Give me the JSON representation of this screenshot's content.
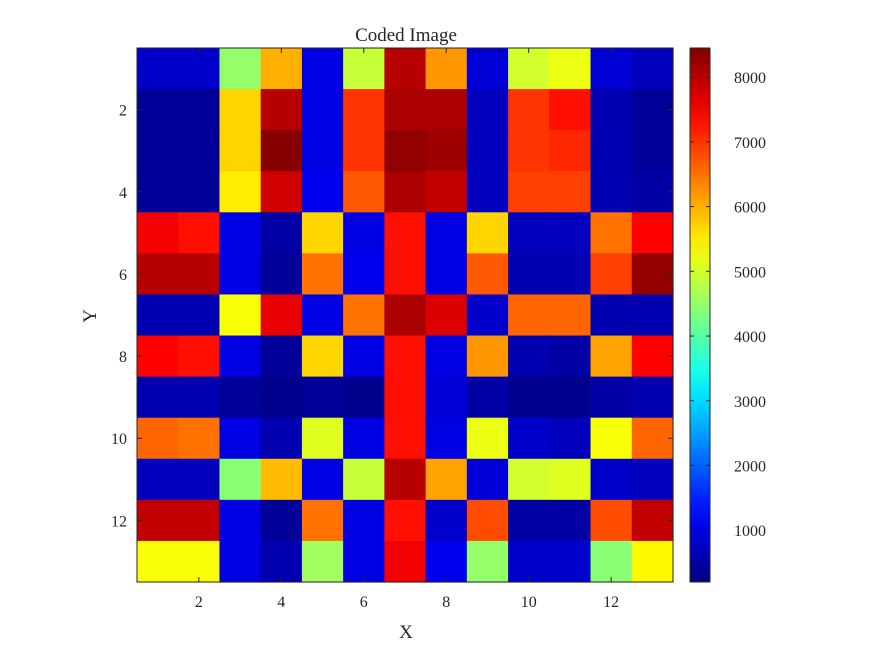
{
  "chart_data": {
    "type": "heatmap",
    "title": "Coded Image",
    "xlabel": "X",
    "ylabel": "Y",
    "colormap": "jet",
    "x_ticks": [
      2,
      4,
      6,
      8,
      10,
      12
    ],
    "y_ticks": [
      2,
      4,
      6,
      8,
      10,
      12
    ],
    "xlim": [
      0.5,
      13.5
    ],
    "ylim": [
      0.5,
      13.5
    ],
    "y_direction": "reverse",
    "clim": [
      200,
      8450
    ],
    "colorbar_ticks": [
      1000,
      2000,
      3000,
      4000,
      5000,
      6000,
      7000,
      8000
    ],
    "colorbar_position": "right",
    "grid": false,
    "z": [
      [
        800,
        800,
        4500,
        6000,
        1000,
        4900,
        8000,
        6200,
        900,
        5000,
        5200,
        900,
        700
      ],
      [
        400,
        400,
        5700,
        8000,
        1000,
        7000,
        8100,
        8100,
        700,
        7000,
        7300,
        600,
        400
      ],
      [
        400,
        400,
        5700,
        8400,
        1000,
        7000,
        8300,
        8200,
        700,
        7000,
        7100,
        600,
        400
      ],
      [
        400,
        400,
        5500,
        7800,
        1100,
        6700,
        8100,
        7900,
        700,
        6900,
        6900,
        600,
        500
      ],
      [
        7500,
        7300,
        1000,
        500,
        5700,
        1000,
        7300,
        1000,
        5700,
        700,
        700,
        6500,
        7400
      ],
      [
        8000,
        8000,
        1000,
        400,
        6500,
        1100,
        7300,
        1000,
        6700,
        600,
        600,
        6900,
        8300
      ],
      [
        600,
        600,
        5300,
        7600,
        1000,
        6500,
        8100,
        7700,
        800,
        6600,
        6600,
        600,
        600
      ],
      [
        7400,
        7300,
        1000,
        400,
        5700,
        1000,
        7300,
        1000,
        6200,
        600,
        500,
        6100,
        7400
      ],
      [
        600,
        600,
        400,
        300,
        400,
        300,
        7300,
        900,
        500,
        300,
        300,
        500,
        600
      ],
      [
        6600,
        6500,
        1000,
        600,
        5100,
        1000,
        7300,
        1000,
        5200,
        800,
        700,
        5300,
        6600
      ],
      [
        700,
        700,
        4400,
        5900,
        1000,
        4900,
        8000,
        6100,
        900,
        5000,
        5100,
        800,
        700
      ],
      [
        7900,
        7900,
        1000,
        400,
        6500,
        1000,
        7300,
        800,
        6800,
        500,
        500,
        6800,
        7900
      ],
      [
        5300,
        5300,
        1000,
        600,
        4600,
        1000,
        7500,
        1100,
        4500,
        800,
        800,
        4400,
        5400
      ]
    ]
  }
}
